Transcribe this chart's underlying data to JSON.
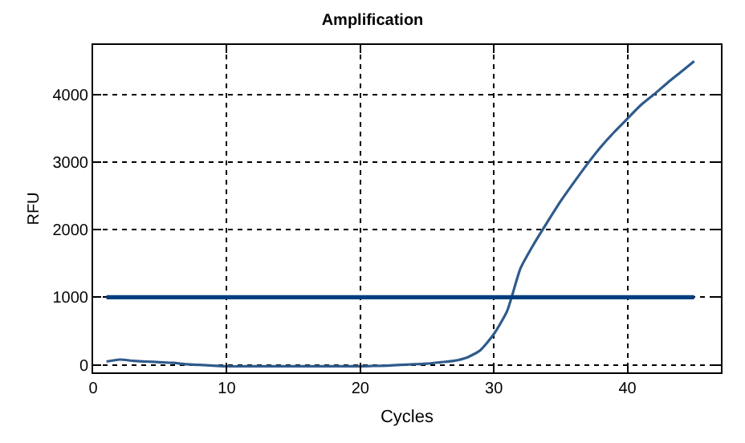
{
  "chart_data": {
    "type": "line",
    "title": "Amplification",
    "xlabel": "Cycles",
    "ylabel": "RFU",
    "xlim": [
      0,
      47
    ],
    "xticks": [
      0,
      10,
      20,
      30,
      40
    ],
    "ylim": [
      -110,
      4730
    ],
    "yticks": [
      0,
      1000,
      2000,
      3000,
      4000
    ],
    "grid": true,
    "marker": "none",
    "series": [
      {
        "color": "#2f5b8c",
        "x": [
          1,
          2,
          3,
          4,
          5,
          6,
          7,
          8,
          9,
          10,
          12,
          14,
          16,
          18,
          20,
          21,
          22,
          23,
          24,
          25,
          26,
          27,
          28,
          29,
          30,
          31,
          32,
          33,
          34,
          35,
          36,
          37,
          38,
          39,
          40,
          41,
          42,
          43,
          44,
          45
        ],
        "values": [
          50,
          80,
          60,
          50,
          40,
          30,
          10,
          0,
          -10,
          -20,
          -20,
          -20,
          -20,
          -20,
          -20,
          -15,
          -10,
          0,
          10,
          20,
          40,
          60,
          110,
          220,
          456,
          800,
          1430,
          1790,
          2110,
          2420,
          2700,
          2970,
          3220,
          3440,
          3640,
          3840,
          4000,
          4170,
          4330,
          4490
        ]
      },
      {
        "color": "#003f7f",
        "x": [
          1,
          45
        ],
        "values": [
          1000,
          1000
        ]
      }
    ]
  }
}
